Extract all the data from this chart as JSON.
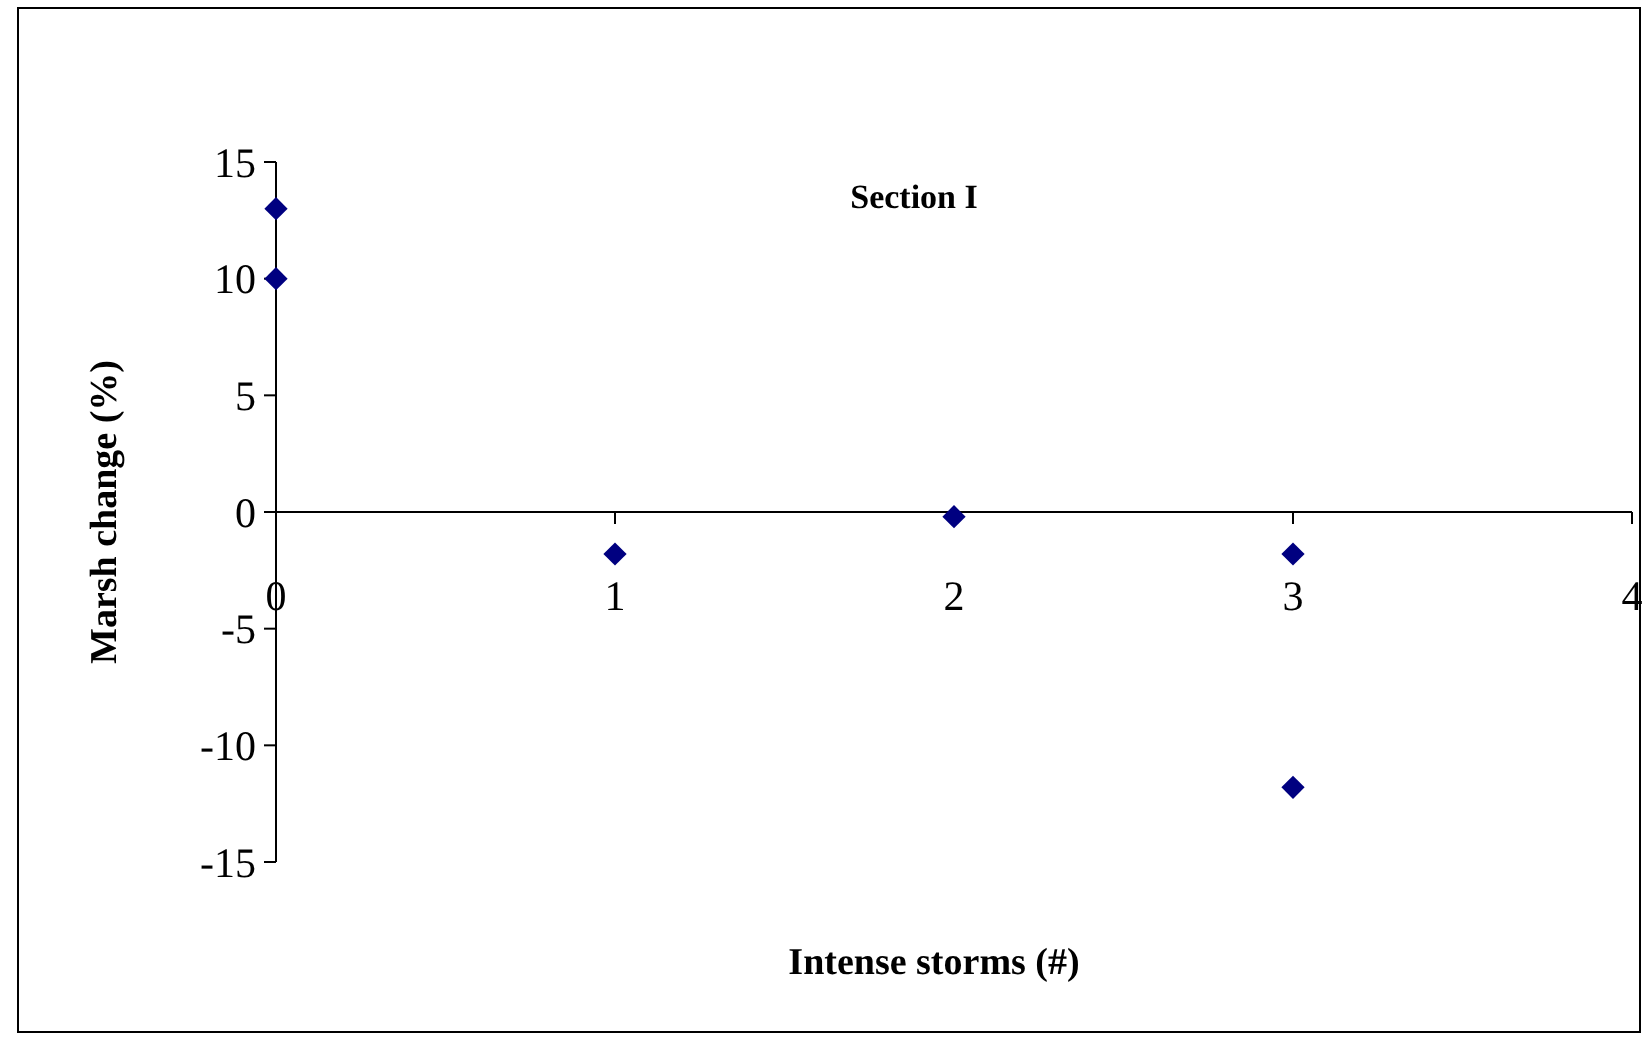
{
  "chart_data": {
    "type": "scatter",
    "title": "Section I",
    "xlabel": "Intense storms (#)",
    "ylabel": "Marsh change (%)",
    "x": [
      0,
      0,
      1,
      2,
      3,
      3
    ],
    "series": [
      {
        "color": "#000080",
        "values": [
          13,
          10,
          -1.8,
          -0.2,
          -1.8,
          -11.8
        ]
      }
    ],
    "xlim": [
      0,
      4
    ],
    "xticks": [
      0,
      1,
      2,
      3,
      4
    ],
    "ylim": [
      -15,
      15
    ],
    "yticks": [
      -15,
      -10,
      -5,
      0,
      5,
      10,
      15
    ],
    "marker": "diamond"
  }
}
